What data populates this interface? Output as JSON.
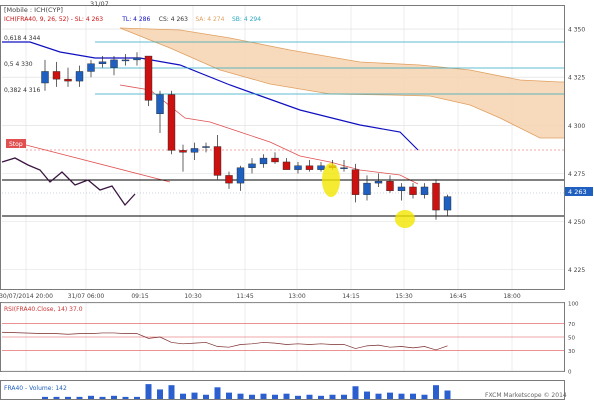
{
  "colors": {
    "background": "#ffffff",
    "frame": "#7a7a7a",
    "grid": "#dcdcdc",
    "bullish": "#1f5fbf",
    "bearish": "#cc1111",
    "ichimoku_cloud": "#f6d2b0",
    "kijun": "#1010c0",
    "tenkan": "#e05050",
    "senkou_b": "#2aa8c0",
    "support_resistance": "#000000",
    "rsi_line": "#7a2a2a",
    "highlight": "#f2e600",
    "stop_flag": "#e05050",
    "volume": "#2b5fd0"
  },
  "main_panel": {
    "header": "[Mobile : ICH(CYP]",
    "ichimoku_legend": [
      {
        "text": "ICH(FRA40, 9, 26, 52) - SL: 4 263",
        "color": "#cc1111"
      },
      {
        "text": "TL: 4 286",
        "color": "#1010c0"
      },
      {
        "text": "CS: 4 263",
        "color": "#333333"
      },
      {
        "text": "SA: 4 274",
        "color": "#e0a060"
      },
      {
        "text": "SB: 4 294",
        "color": "#2aa8c0"
      }
    ],
    "date_marker": "31/07",
    "level_labels": [
      "0,618 4 344",
      "0,5 4 330",
      "0,382 4 316"
    ],
    "stop_label": "Stop",
    "last_price": "4 263",
    "y_ticks": [
      "4 350",
      "4 325",
      "4 300",
      "4 275",
      "4 250",
      "4 225"
    ],
    "x_ticks": [
      "30/07/2014 20:00",
      "31/07 06:00",
      "09:15",
      "10:30",
      "11:45",
      "13:00",
      "14:15",
      "15:30",
      "16:45",
      "18:00"
    ]
  },
  "rsi_panel": {
    "legend": "RSI(FRA40.Close, 14) 37.0",
    "levels": [
      "100",
      "70",
      "50",
      "30",
      "0"
    ]
  },
  "volume_panel": {
    "legend": "FRA40 - Volume: 142",
    "watermark": "FXCM Marketscope © 2014"
  },
  "chart_data": [
    {
      "type": "candlestick",
      "title": "FRA40",
      "ylim": [
        4215,
        4362
      ],
      "x_categories": [
        "30/07/2014 20:00",
        "31/07 06:00",
        "09:15",
        "10:30",
        "11:45",
        "13:00",
        "14:15",
        "15:30",
        "16:45",
        "18:00"
      ],
      "ohlc": [
        {
          "o": 4322,
          "h": 4334,
          "l": 4318,
          "c": 4328
        },
        {
          "o": 4328,
          "h": 4333,
          "l": 4320,
          "c": 4324
        },
        {
          "o": 4324,
          "h": 4330,
          "l": 4320,
          "c": 4323
        },
        {
          "o": 4323,
          "h": 4331,
          "l": 4320,
          "c": 4328
        },
        {
          "o": 4328,
          "h": 4334,
          "l": 4325,
          "c": 4332
        },
        {
          "o": 4332,
          "h": 4336,
          "l": 4330,
          "c": 4333
        },
        {
          "o": 4330,
          "h": 4336,
          "l": 4326,
          "c": 4334
        },
        {
          "o": 4334,
          "h": 4337,
          "l": 4331,
          "c": 4334
        },
        {
          "o": 4334,
          "h": 4338,
          "l": 4331,
          "c": 4335
        },
        {
          "o": 4336,
          "h": 4336,
          "l": 4310,
          "c": 4313
        },
        {
          "o": 4306,
          "h": 4318,
          "l": 4296,
          "c": 4316
        },
        {
          "o": 4316,
          "h": 4318,
          "l": 4285,
          "c": 4287
        },
        {
          "o": 4287,
          "h": 4290,
          "l": 4276,
          "c": 4286
        },
        {
          "o": 4286,
          "h": 4291,
          "l": 4282,
          "c": 4288
        },
        {
          "o": 4289,
          "h": 4291,
          "l": 4286,
          "c": 4289
        },
        {
          "o": 4289,
          "h": 4295,
          "l": 4272,
          "c": 4274
        },
        {
          "o": 4274,
          "h": 4276,
          "l": 4267,
          "c": 4270
        },
        {
          "o": 4270,
          "h": 4279,
          "l": 4266,
          "c": 4278
        },
        {
          "o": 4278,
          "h": 4283,
          "l": 4275,
          "c": 4280
        },
        {
          "o": 4280,
          "h": 4285,
          "l": 4278,
          "c": 4283
        },
        {
          "o": 4283,
          "h": 4286,
          "l": 4280,
          "c": 4281
        },
        {
          "o": 4281,
          "h": 4283,
          "l": 4277,
          "c": 4277
        },
        {
          "o": 4277,
          "h": 4281,
          "l": 4275,
          "c": 4279
        },
        {
          "o": 4279,
          "h": 4282,
          "l": 4276,
          "c": 4277
        },
        {
          "o": 4277,
          "h": 4281,
          "l": 4276,
          "c": 4279
        },
        {
          "o": 4279,
          "h": 4282,
          "l": 4277,
          "c": 4278
        },
        {
          "o": 4278,
          "h": 4282,
          "l": 4276,
          "c": 4278
        },
        {
          "o": 4277,
          "h": 4280,
          "l": 4260,
          "c": 4264
        },
        {
          "o": 4264,
          "h": 4274,
          "l": 4261,
          "c": 4270
        },
        {
          "o": 4270,
          "h": 4275,
          "l": 4268,
          "c": 4271
        },
        {
          "o": 4271,
          "h": 4274,
          "l": 4265,
          "c": 4266
        },
        {
          "o": 4266,
          "h": 4270,
          "l": 4261,
          "c": 4268
        },
        {
          "o": 4268,
          "h": 4270,
          "l": 4262,
          "c": 4264
        },
        {
          "o": 4264,
          "h": 4270,
          "l": 4262,
          "c": 4268
        },
        {
          "o": 4270,
          "h": 4272,
          "l": 4251,
          "c": 4256
        },
        {
          "o": 4256,
          "h": 4264,
          "l": 4253,
          "c": 4263
        }
      ],
      "levels": [
        4344,
        4330,
        4316
      ],
      "support_lines": [
        4270,
        4252
      ],
      "stop_level": 4286
    },
    {
      "type": "line",
      "title": "RSI",
      "ylim": [
        0,
        100
      ],
      "values": [
        55,
        55,
        54,
        55,
        55,
        56,
        56,
        55,
        55,
        48,
        50,
        42,
        40,
        41,
        42,
        36,
        35,
        39,
        40,
        42,
        41,
        39,
        40,
        39,
        40,
        39,
        39,
        33,
        37,
        38,
        35,
        36,
        34,
        36,
        31,
        37
      ]
    },
    {
      "type": "bar",
      "title": "Volume",
      "values": [
        2,
        2,
        2,
        2,
        3,
        2,
        3,
        2,
        2,
        14,
        9,
        13,
        5,
        6,
        4,
        11,
        6,
        5,
        4,
        5,
        4,
        5,
        3,
        4,
        3,
        4,
        4,
        12,
        7,
        5,
        6,
        5,
        5,
        4,
        13,
        8
      ]
    }
  ]
}
